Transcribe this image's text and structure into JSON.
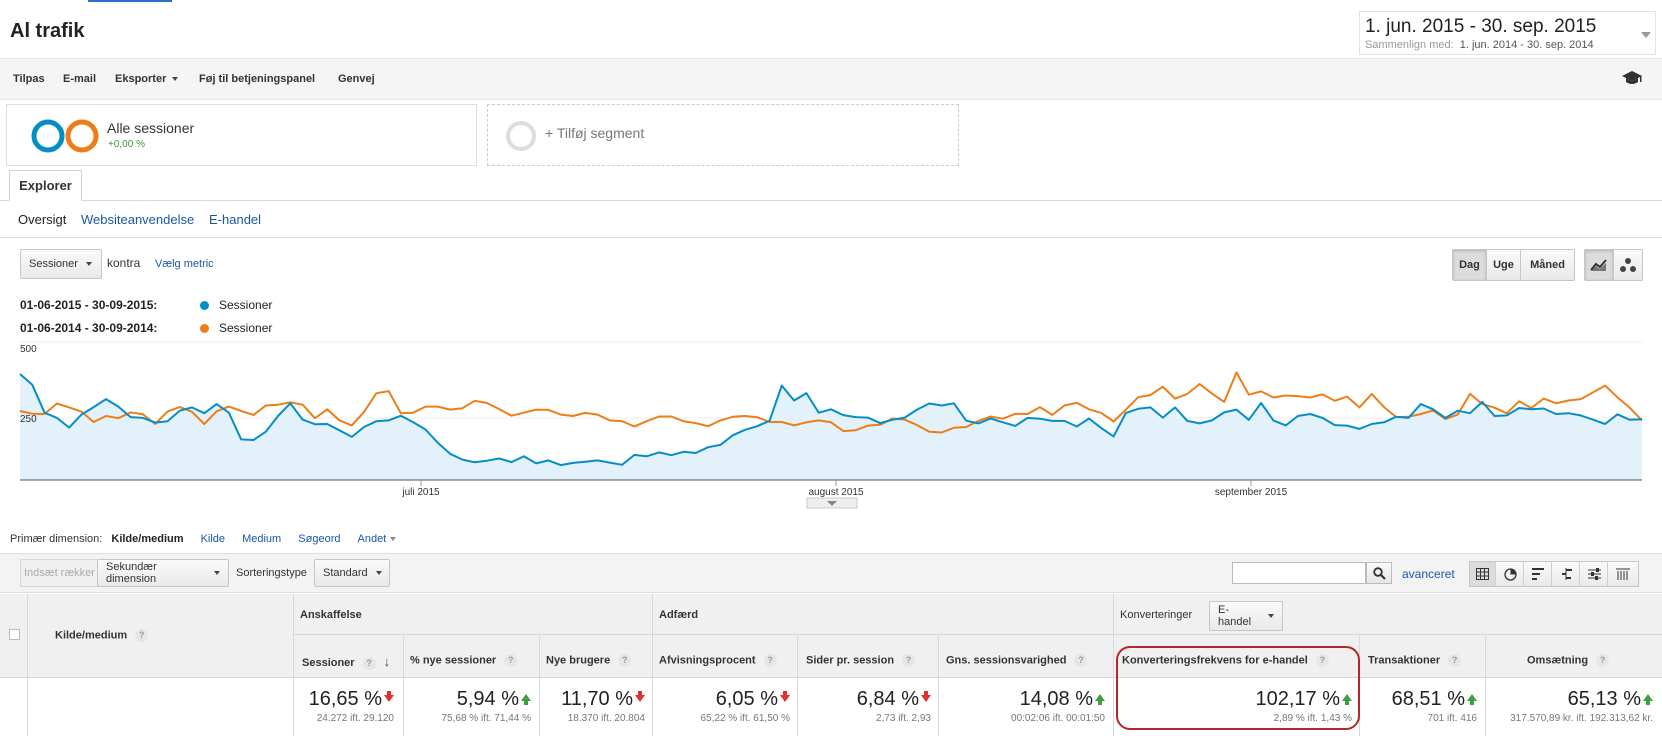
{
  "header": {
    "title": "Al trafik",
    "date_range": "1. jun. 2015 - 30. sep. 2015",
    "compare_label": "Sammenlign med:",
    "compare_range": "1. jun. 2014 - 30. sep. 2014"
  },
  "toolbar": {
    "items": [
      "Tilpas",
      "E-mail",
      "Eksporter",
      "Føj til betjeningspanel",
      "Genvej"
    ]
  },
  "segments": {
    "name": "Alle sessioner",
    "change": "+0,00 %",
    "add_label": "+ Tilføj segment"
  },
  "tabs": {
    "explorer": "Explorer"
  },
  "subtabs": [
    "Oversigt",
    "Websiteanvendelse",
    "E-handel"
  ],
  "chart_controls": {
    "metric": "Sessioner",
    "versus": "kontra",
    "choose_metric": "Vælg metric",
    "granularity": [
      "Dag",
      "Uge",
      "Måned"
    ],
    "active_granularity": "Dag"
  },
  "legend": [
    {
      "period": "01-06-2015 - 30-09-2015:",
      "series": "Sessioner",
      "color": "#058dc7"
    },
    {
      "period": "01-06-2014 - 30-09-2014:",
      "series": "Sessioner",
      "color": "#ed7e17"
    }
  ],
  "chart_data": {
    "type": "line",
    "y_ticks": [
      "500",
      "250"
    ],
    "ylim": [
      0,
      500
    ],
    "x_labels": [
      "juli 2015",
      "august 2015",
      "september 2015"
    ],
    "series": [
      {
        "name": "Sessioner",
        "period": "01-06-2015 - 30-09-2015",
        "color": "#058dc7",
        "values": [
          384,
          345,
          244,
          225,
          190,
          237,
          264,
          293,
          266,
          228,
          225,
          208,
          213,
          251,
          263,
          242,
          275,
          244,
          147,
          145,
          175,
          232,
          278,
          219,
          202,
          203,
          180,
          156,
          192,
          213,
          216,
          233,
          209,
          183,
          135,
          95,
          74,
          64,
          70,
          78,
          65,
          86,
          60,
          71,
          54,
          62,
          66,
          71,
          63,
          55,
          91,
          86,
          100,
          90,
          102,
          98,
          119,
          127,
          162,
          182,
          195,
          215,
          342,
          288,
          315,
          244,
          256,
          235,
          228,
          226,
          206,
          218,
          226,
          255,
          277,
          270,
          278,
          215,
          205,
          223,
          209,
          196,
          225,
          222,
          214,
          214,
          194,
          223,
          188,
          158,
          243,
          258,
          263,
          226,
          263,
          214,
          205,
          216,
          245,
          255,
          218,
          279,
          216,
          198,
          232,
          239,
          225,
          199,
          197,
          185,
          203,
          209,
          229,
          225,
          275,
          256,
          225,
          251,
          242,
          283,
          232,
          234,
          261,
          256,
          259,
          239,
          242,
          234,
          219,
          203,
          238,
          218,
          220
        ]
      },
      {
        "name": "Sessioner",
        "period": "01-06-2014 - 30-09-2014",
        "color": "#ed7e17",
        "values": [
          250,
          240,
          239,
          277,
          263,
          248,
          210,
          232,
          224,
          245,
          238,
          203,
          248,
          264,
          247,
          203,
          249,
          266,
          250,
          236,
          270,
          273,
          281,
          273,
          224,
          256,
          216,
          198,
          247,
          314,
          322,
          242,
          244,
          266,
          266,
          255,
          260,
          287,
          279,
          257,
          233,
          244,
          255,
          254,
          237,
          232,
          243,
          237,
          216,
          213,
          194,
          213,
          230,
          230,
          213,
          206,
          195,
          216,
          229,
          232,
          227,
          210,
          210,
          198,
          209,
          216,
          209,
          177,
          180,
          197,
          200,
          223,
          219,
          199,
          175,
          172,
          189,
          192,
          214,
          230,
          222,
          240,
          239,
          264,
          236,
          270,
          280,
          256,
          243,
          212,
          255,
          300,
          308,
          338,
          295,
          312,
          348,
          313,
          283,
          390,
          309,
          321,
          299,
          306,
          304,
          299,
          310,
          287,
          302,
          263,
          312,
          264,
          228,
          229,
          239,
          252,
          221,
          237,
          312,
          275,
          262,
          242,
          285,
          261,
          295,
          278,
          288,
          293,
          317,
          342,
          300,
          262,
          216
        ]
      }
    ]
  },
  "dimension_bar": {
    "label": "Primær dimension:",
    "active": "Kilde/medium",
    "options": [
      "Kilde",
      "Medium",
      "Søgeord",
      "Andet"
    ]
  },
  "table_toolbar": {
    "insert_rows": "Indsæt rækker",
    "secondary_dimension": "Sekundær dimension",
    "sort_label": "Sorteringstype",
    "sort_value": "Standard",
    "search_placeholder": "",
    "advanced": "avanceret"
  },
  "table": {
    "dim_header": "Kilde/medium",
    "groups": {
      "acquisition": "Anskaffelse",
      "behavior": "Adfærd",
      "conversions": "Konverteringer",
      "conversion_select": "E-handel"
    },
    "columns": [
      {
        "label": "Sessioner",
        "value": "16,65 %",
        "trend": "down",
        "compare": "24.272 ift. 29.120"
      },
      {
        "label": "% nye sessioner",
        "value": "5,94 %",
        "trend": "up",
        "compare": "75,68 % ift. 71,44 %"
      },
      {
        "label": "Nye brugere",
        "value": "11,70 %",
        "trend": "down",
        "compare": "18.370 ift. 20.804"
      },
      {
        "label": "Afvisningsprocent",
        "value": "6,05 %",
        "trend": "down",
        "compare": "65,22 % ift. 61,50 %"
      },
      {
        "label": "Sider pr. session",
        "value": "6,84 %",
        "trend": "down",
        "compare": "2,73 ift. 2,93"
      },
      {
        "label": "Gns. sessionsvarighed",
        "value": "14,08 %",
        "trend": "up",
        "compare": "00:02:06 ift. 00:01:50"
      },
      {
        "label": "Konverteringsfrekvens for e-handel",
        "value": "102,17 %",
        "trend": "up",
        "compare": "2,89 % ift. 1,43 %"
      },
      {
        "label": "Transaktioner",
        "value": "68,51 %",
        "trend": "up",
        "compare": "701 ift. 416"
      },
      {
        "label": "Omsætning",
        "value": "65,13 %",
        "trend": "up",
        "compare": "317.570,89 kr. ift. 192.313,62 kr."
      }
    ]
  }
}
